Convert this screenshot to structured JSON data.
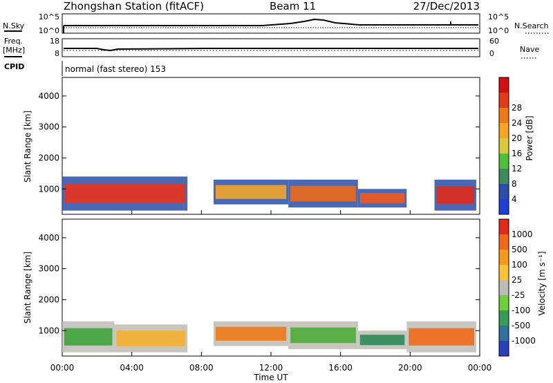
{
  "header": {
    "station": "Zhongshan Station (fitACF)",
    "beam": "Beam 11",
    "date": "27/Dec/2013"
  },
  "panels": {
    "nsky_label": "N.Sky",
    "nsearch_label": "N.Search",
    "freq_label_line1": "Freq.",
    "freq_label_line2": "[MHz]",
    "nave_label": "Nave",
    "cpid_label": "CPID",
    "cpid_value": "normal (fast stereo) 153",
    "noise_ticks_left": [
      "10^5",
      "10^0"
    ],
    "noise_ticks_right": [
      "10^5",
      "10^0"
    ],
    "freq_ticks": [
      "18",
      "8"
    ],
    "nave_ticks": [
      "60",
      "0"
    ]
  },
  "chart_data": [
    {
      "type": "heatmap",
      "name": "power",
      "ylabel": "Slant Range [km]",
      "xlabel": "Time UT",
      "y_ticks": [
        "1000",
        "2000",
        "3000",
        "4000"
      ],
      "x_ticks": [
        "00:00",
        "04:00",
        "08:00",
        "12:00",
        "16:00",
        "20:00",
        "00:00"
      ],
      "colorbar": {
        "label": "Power [dB]",
        "ticks": [
          "4",
          "8",
          "12",
          "16",
          "20",
          "24",
          "28"
        ],
        "colors": [
          "#1f3fd6",
          "#2a4fa8",
          "#3f8a5a",
          "#4fbf3a",
          "#d9c83a",
          "#f5a623",
          "#f07a1a",
          "#e23a1a",
          "#d41010"
        ]
      },
      "ylim": [
        180,
        4600
      ],
      "xlim": [
        0,
        24
      ],
      "echo_regions": [
        {
          "t0": 0.0,
          "t1": 7.2,
          "r0": 300,
          "r1": 1400,
          "core": "#e8321a"
        },
        {
          "t0": 8.7,
          "t1": 13.0,
          "r0": 500,
          "r1": 1300,
          "core": "#f2a52a"
        },
        {
          "t0": 13.0,
          "t1": 17.0,
          "r0": 400,
          "r1": 1300,
          "core": "#ee6a1a"
        },
        {
          "t0": 17.0,
          "t1": 19.8,
          "r0": 400,
          "r1": 1000,
          "core": "#f05a1a"
        },
        {
          "t0": 21.4,
          "t1": 23.8,
          "r0": 300,
          "r1": 1300,
          "core": "#e02a1a"
        }
      ]
    },
    {
      "type": "heatmap",
      "name": "velocity",
      "ylabel": "Slant Range [km]",
      "xlabel": "Time UT",
      "y_ticks": [
        "1000",
        "2000",
        "3000",
        "4000"
      ],
      "x_ticks": [
        "00:00",
        "04:00",
        "08:00",
        "12:00",
        "16:00",
        "20:00",
        "00:00"
      ],
      "colorbar": {
        "label": "Velocity [m s⁻¹]",
        "ticks": [
          "1000",
          "500",
          "100",
          "25",
          "-25",
          "-100",
          "-500",
          "-1000"
        ],
        "colors": [
          "#2a3fb8",
          "#2f6fa0",
          "#3a9a5a",
          "#6fcf3a",
          "#bdbdb5",
          "#f5c23a",
          "#f59a1a",
          "#ee6a1a",
          "#e02a1a"
        ]
      },
      "ylim": [
        180,
        4600
      ],
      "xlim": [
        0,
        24
      ],
      "echo_regions": [
        {
          "t0": 0.0,
          "t1": 3.0,
          "r0": 300,
          "r1": 1300,
          "core": "#3fa33a"
        },
        {
          "t0": 3.0,
          "t1": 7.2,
          "r0": 300,
          "r1": 1200,
          "core": "#f5b030"
        },
        {
          "t0": 8.7,
          "t1": 13.0,
          "r0": 500,
          "r1": 1300,
          "core": "#ee7a1a"
        },
        {
          "t0": 13.0,
          "t1": 17.0,
          "r0": 400,
          "r1": 1300,
          "core": "#4faa3a"
        },
        {
          "t0": 17.0,
          "t1": 19.8,
          "r0": 400,
          "r1": 1000,
          "core": "#2f8a5a"
        },
        {
          "t0": 19.8,
          "t1": 23.8,
          "r0": 300,
          "r1": 1300,
          "core": "#ee6a1a"
        }
      ]
    }
  ]
}
